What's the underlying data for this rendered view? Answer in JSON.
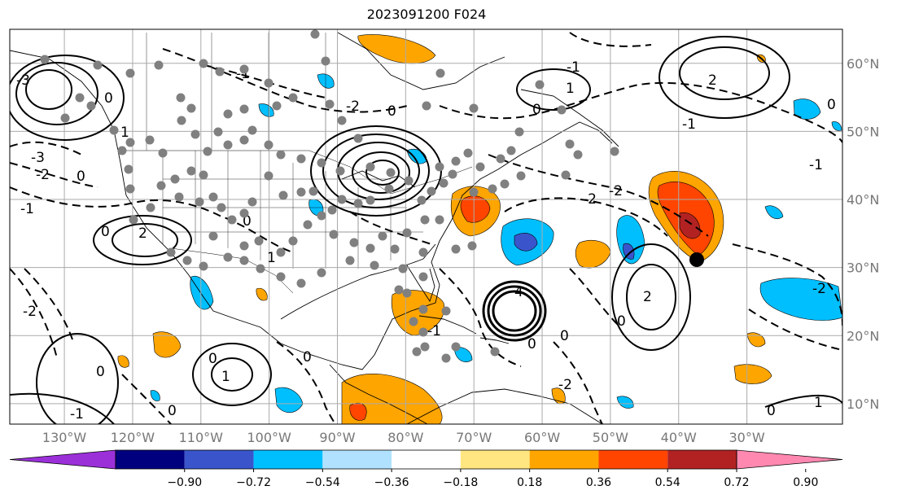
{
  "title": "2023091200 F024",
  "map": {
    "projection": "PlateCarree",
    "lon_range": [
      -138,
      -16
    ],
    "lat_range": [
      7,
      65
    ],
    "grid": true,
    "lon_labels": [
      "130°W",
      "120°W",
      "110°W",
      "100°W",
      "90°W",
      "80°W",
      "70°W",
      "60°W",
      "50°W",
      "40°W",
      "30°W"
    ],
    "lon_values": [
      -130,
      -120,
      -110,
      -100,
      -90,
      -80,
      -70,
      -60,
      -50,
      -40,
      -30
    ],
    "lat_labels": [
      "10°N",
      "20°N",
      "30°N",
      "40°N",
      "50°N",
      "60°N"
    ],
    "lat_values": [
      10,
      20,
      30,
      40,
      50,
      60
    ],
    "colors": {
      "grid": "#aaaaaa",
      "coast": "#000000",
      "contour": "#000000",
      "station_marker": "#808080",
      "storm_marker": "#000000"
    },
    "contour_labels": [
      "-3",
      "-2",
      "-1",
      "0",
      "1",
      "2",
      "4"
    ]
  },
  "colorbar": {
    "ticks": [
      "−0.90",
      "−0.72",
      "−0.54",
      "−0.36",
      "−0.18",
      "0.18",
      "0.36",
      "0.54",
      "0.72",
      "0.90"
    ],
    "colors": [
      "#9b30d9",
      "#00007f",
      "#3a55cc",
      "#00bfff",
      "#b0e2ff",
      "#ffffff",
      "#ffe680",
      "#ffa500",
      "#ff4500",
      "#b22222",
      "#ff88b0"
    ],
    "extend": "both"
  }
}
